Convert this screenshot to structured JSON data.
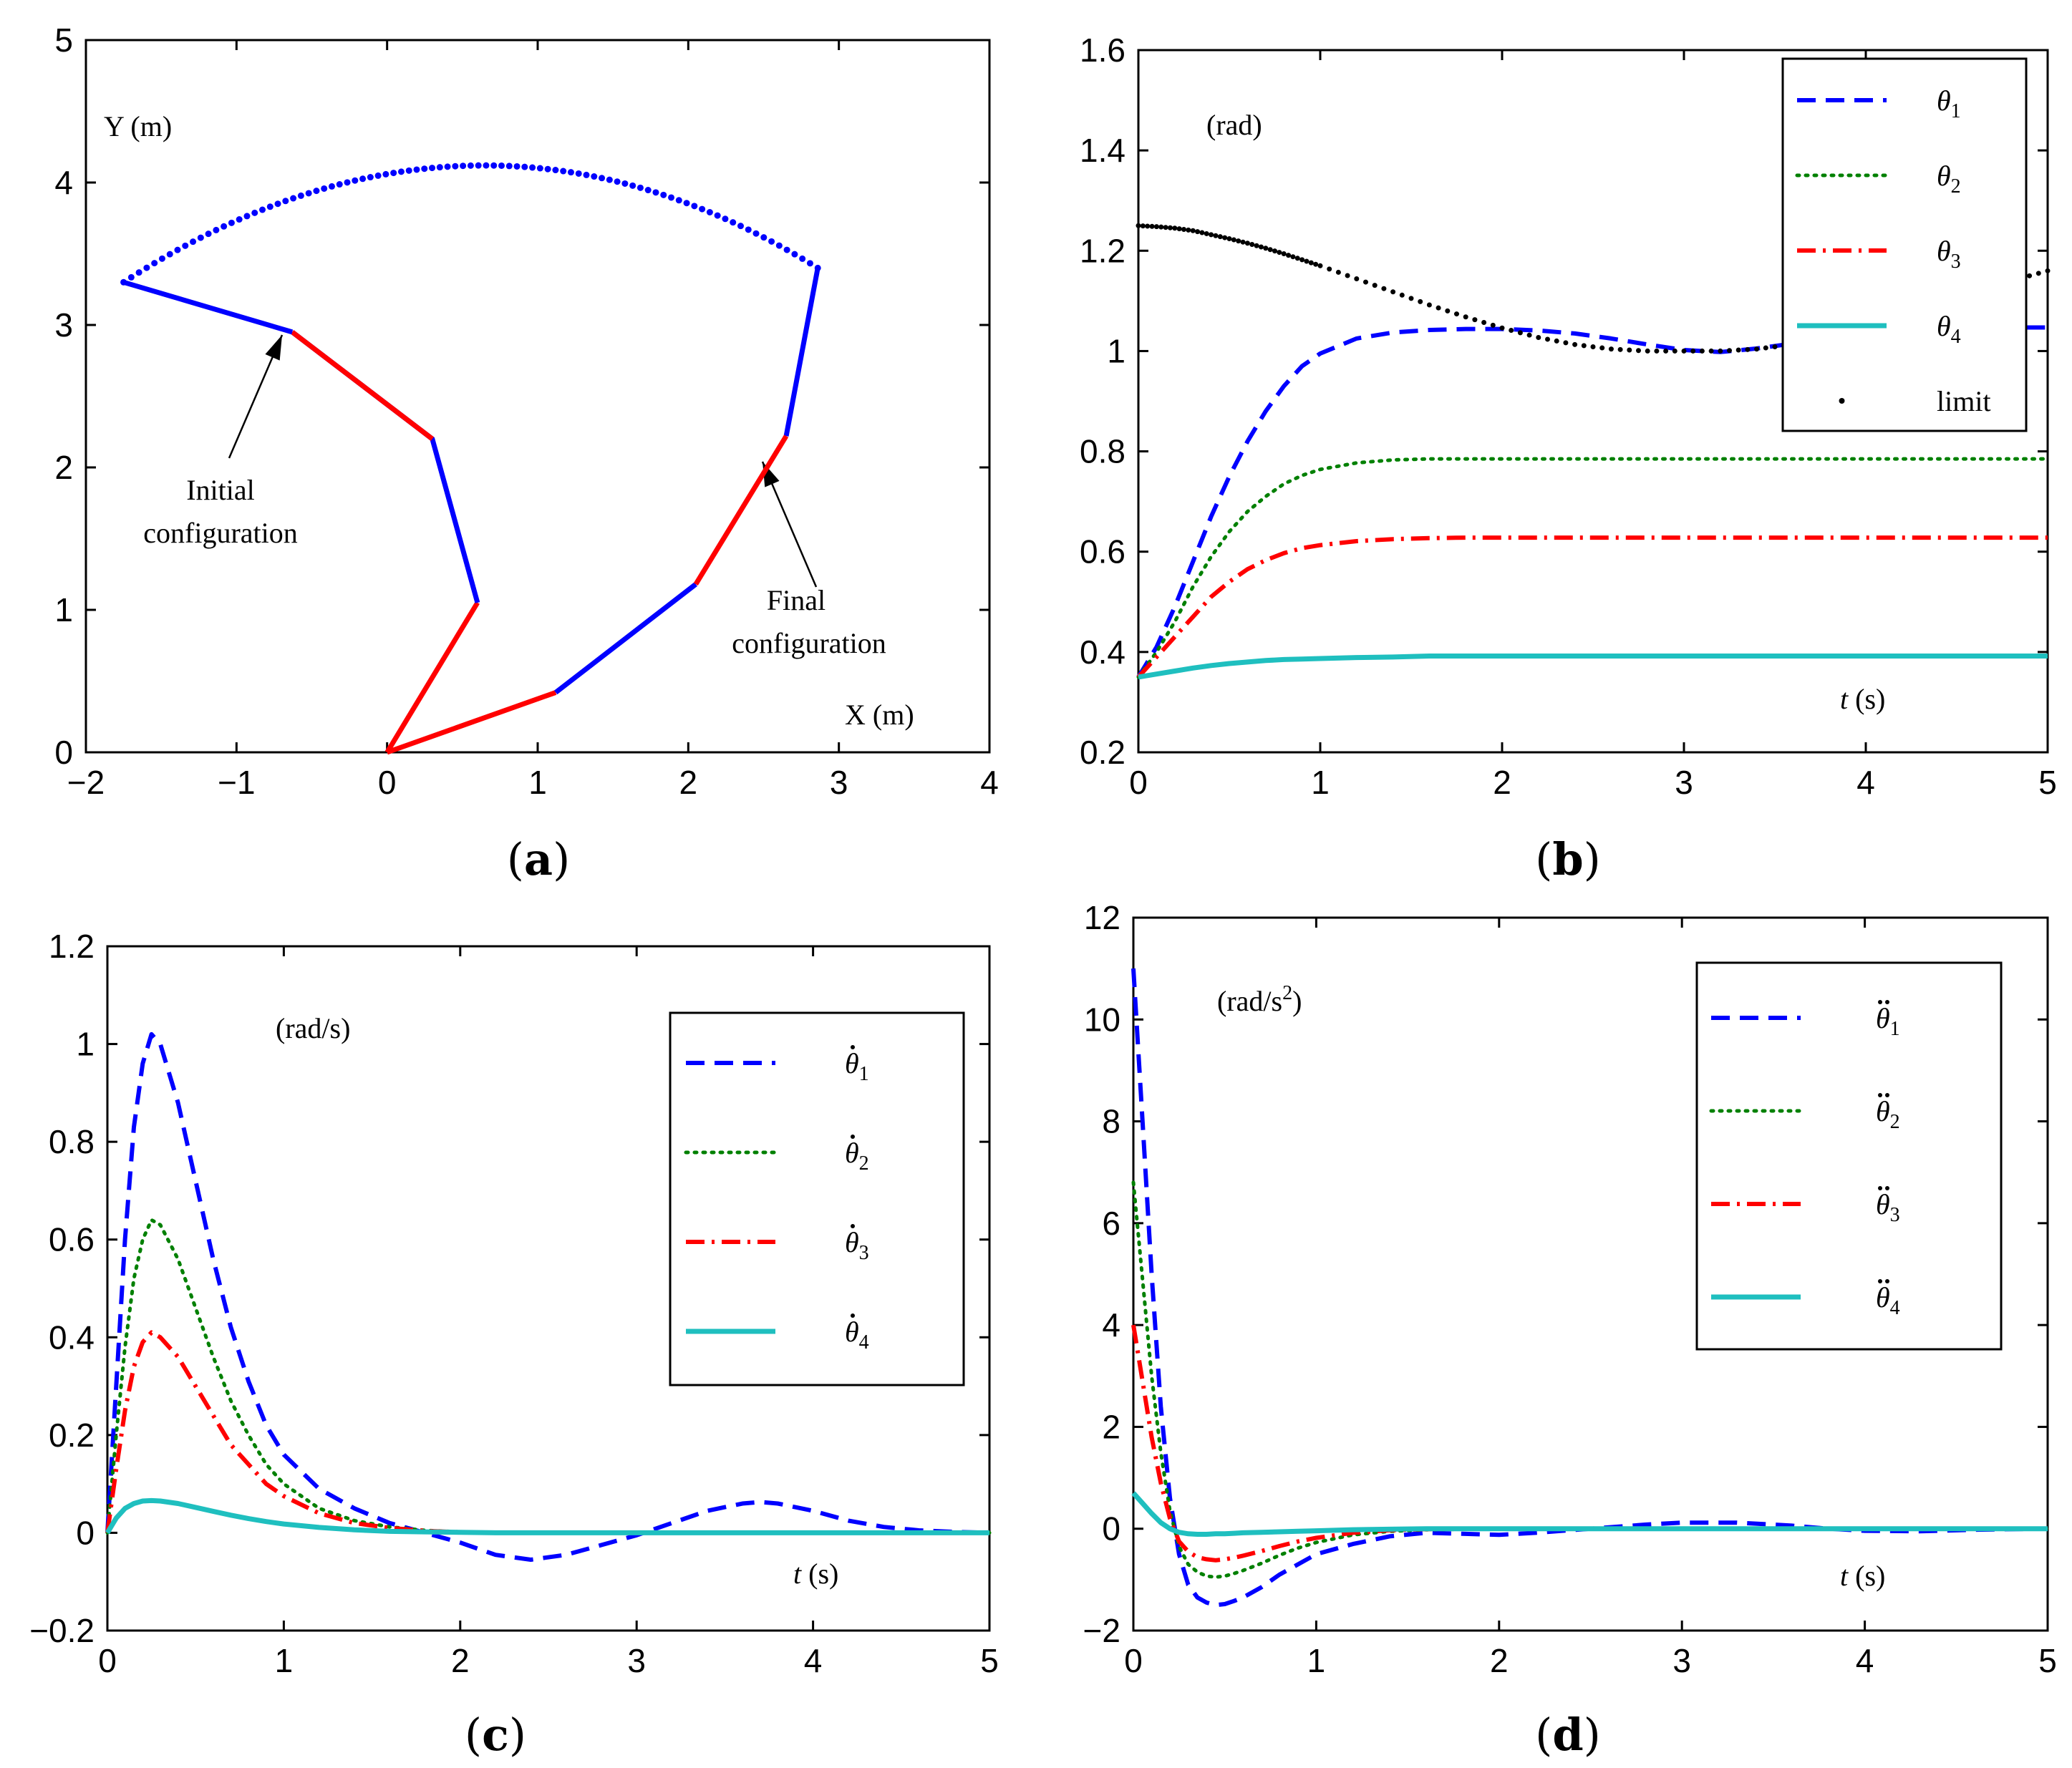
{
  "chart_data": [
    {
      "id": "a",
      "type": "line",
      "caption_letter": "a",
      "xlabel": "X (m)",
      "ylabel": "Y (m)",
      "xlim": [
        -2,
        4
      ],
      "ylim": [
        0,
        5
      ],
      "xticks": [
        -2,
        -1,
        0,
        1,
        2,
        3,
        4
      ],
      "xtick_labels": [
        "−2",
        "−1",
        "0",
        "1",
        "2",
        "3",
        "4"
      ],
      "yticks": [
        0,
        1,
        2,
        3,
        4,
        5
      ],
      "ytick_labels": [
        "0",
        "1",
        "2",
        "3",
        "4",
        "5"
      ],
      "annotations": [
        {
          "lines": [
            "Initial",
            "configuration"
          ],
          "anchor_data": [
            -0.55,
            2.9
          ],
          "text_data": [
            -0.9,
            1.8
          ]
        },
        {
          "lines": [
            "Final",
            "configuration"
          ],
          "anchor_data": [
            2.6,
            2.15
          ],
          "text_data": [
            2.8,
            1.0
          ]
        }
      ],
      "initial_configuration": [
        [
          0,
          0
        ],
        [
          0.6,
          1.05
        ],
        [
          0.3,
          2.2
        ],
        [
          -0.63,
          2.95
        ],
        [
          -1.75,
          3.3
        ]
      ],
      "final_configuration": [
        [
          0,
          0
        ],
        [
          1.12,
          0.42
        ],
        [
          2.05,
          1.18
        ],
        [
          2.65,
          2.22
        ],
        [
          2.86,
          3.4
        ]
      ],
      "colors": {
        "red": "#ff0000",
        "blue": "#0000ff"
      }
    },
    {
      "id": "b",
      "type": "line",
      "caption_letter": "b",
      "unit_label": "(rad)",
      "xlabel_italic": "t",
      "xlabel_rest": " (s)",
      "xlim": [
        0,
        5
      ],
      "ylim": [
        0.2,
        1.6
      ],
      "xticks": [
        0,
        1,
        2,
        3,
        4,
        5
      ],
      "xtick_labels": [
        "0",
        "1",
        "2",
        "3",
        "4",
        "5"
      ],
      "yticks": [
        0.2,
        0.4,
        0.6,
        0.8,
        1.0,
        1.2,
        1.4,
        1.6
      ],
      "ytick_labels": [
        "0.2",
        "0.4",
        "0.6",
        "0.8",
        "1",
        "1.2",
        "1.4",
        "1.6"
      ],
      "x": [
        0,
        0.1,
        0.2,
        0.3,
        0.4,
        0.5,
        0.6,
        0.7,
        0.8,
        0.9,
        1.0,
        1.2,
        1.4,
        1.6,
        1.8,
        2.0,
        2.2,
        2.4,
        2.6,
        2.8,
        3.0,
        3.2,
        3.4,
        3.6,
        3.8,
        4.0,
        4.2,
        4.4,
        4.6,
        4.8,
        5.0
      ],
      "series": [
        {
          "name": "θ",
          "subscript": "1",
          "color": "#0000ff",
          "style": "dashed",
          "values": [
            0.35,
            0.41,
            0.49,
            0.58,
            0.67,
            0.75,
            0.82,
            0.88,
            0.93,
            0.97,
            0.995,
            1.025,
            1.037,
            1.042,
            1.044,
            1.044,
            1.041,
            1.035,
            1.025,
            1.013,
            1.002,
            0.998,
            1.005,
            1.015,
            1.027,
            1.037,
            1.044,
            1.047,
            1.047,
            1.047,
            1.047
          ]
        },
        {
          "name": "θ",
          "subscript": "2",
          "color": "#008000",
          "style": "dotted",
          "values": [
            0.35,
            0.4,
            0.46,
            0.53,
            0.59,
            0.64,
            0.68,
            0.71,
            0.735,
            0.752,
            0.764,
            0.777,
            0.783,
            0.785,
            0.785,
            0.785,
            0.785,
            0.785,
            0.785,
            0.785,
            0.785,
            0.785,
            0.785,
            0.785,
            0.785,
            0.785,
            0.785,
            0.785,
            0.785,
            0.785,
            0.785
          ]
        },
        {
          "name": "θ",
          "subscript": "3",
          "color": "#ff0000",
          "style": "dashdot",
          "values": [
            0.35,
            0.39,
            0.43,
            0.47,
            0.51,
            0.54,
            0.565,
            0.583,
            0.597,
            0.607,
            0.613,
            0.621,
            0.625,
            0.627,
            0.628,
            0.628,
            0.628,
            0.628,
            0.628,
            0.628,
            0.628,
            0.628,
            0.628,
            0.628,
            0.628,
            0.628,
            0.628,
            0.628,
            0.628,
            0.628,
            0.628
          ]
        },
        {
          "name": "θ",
          "subscript": "4",
          "color": "#1fbfbf",
          "style": "solid",
          "values": [
            0.35,
            0.356,
            0.362,
            0.368,
            0.373,
            0.377,
            0.38,
            0.383,
            0.385,
            0.386,
            0.387,
            0.389,
            0.39,
            0.392,
            0.392,
            0.392,
            0.392,
            0.392,
            0.392,
            0.392,
            0.392,
            0.392,
            0.392,
            0.392,
            0.392,
            0.392,
            0.392,
            0.392,
            0.392,
            0.392,
            0.392
          ]
        },
        {
          "name": "limit",
          "color": "#000000",
          "style": "dots",
          "values": [
            1.25,
            1.248,
            1.245,
            1.24,
            1.232,
            1.224,
            1.215,
            1.205,
            1.194,
            1.182,
            1.17,
            1.144,
            1.118,
            1.092,
            1.068,
            1.046,
            1.027,
            1.013,
            1.004,
            1.0,
            1.0,
            1.0,
            1.004,
            1.013,
            1.027,
            1.046,
            1.068,
            1.092,
            1.118,
            1.14,
            1.16
          ]
        }
      ],
      "legend_position": "top-right"
    },
    {
      "id": "c",
      "type": "line",
      "caption_letter": "c",
      "unit_label": "(rad/s)",
      "xlabel_italic": "t",
      "xlabel_rest": " (s)",
      "xlim": [
        0,
        5
      ],
      "ylim": [
        -0.2,
        1.2
      ],
      "xticks": [
        0,
        1,
        2,
        3,
        4,
        5
      ],
      "xtick_labels": [
        "0",
        "1",
        "2",
        "3",
        "4",
        "5"
      ],
      "yticks": [
        -0.2,
        0,
        0.2,
        0.4,
        0.6,
        0.8,
        1.0,
        1.2
      ],
      "ytick_labels": [
        "−0.2",
        "0",
        "0.2",
        "0.4",
        "0.6",
        "0.8",
        "1",
        "1.2"
      ],
      "x": [
        0,
        0.05,
        0.1,
        0.15,
        0.2,
        0.25,
        0.3,
        0.4,
        0.5,
        0.6,
        0.7,
        0.8,
        0.9,
        1.0,
        1.2,
        1.4,
        1.6,
        1.8,
        2.0,
        2.2,
        2.4,
        2.6,
        2.8,
        3.0,
        3.2,
        3.4,
        3.6,
        3.7,
        3.8,
        4.0,
        4.2,
        4.4,
        4.6,
        4.8,
        5.0
      ],
      "series": [
        {
          "name": "θ",
          "subscript": "1",
          "dot": "single",
          "color": "#0000ff",
          "style": "dashed",
          "values": [
            0.0,
            0.3,
            0.6,
            0.83,
            0.96,
            1.02,
            1.0,
            0.88,
            0.72,
            0.56,
            0.42,
            0.31,
            0.22,
            0.16,
            0.09,
            0.05,
            0.02,
            0.0,
            -0.02,
            -0.045,
            -0.055,
            -0.045,
            -0.025,
            -0.005,
            0.02,
            0.045,
            0.06,
            0.063,
            0.06,
            0.045,
            0.025,
            0.012,
            0.005,
            0.002,
            0.0
          ]
        },
        {
          "name": "θ",
          "subscript": "2",
          "dot": "single",
          "color": "#008000",
          "style": "dotted",
          "values": [
            0.0,
            0.2,
            0.38,
            0.52,
            0.6,
            0.64,
            0.63,
            0.56,
            0.46,
            0.36,
            0.27,
            0.2,
            0.14,
            0.1,
            0.05,
            0.025,
            0.012,
            0.005,
            0.002,
            0.001,
            0,
            0,
            0,
            0,
            0,
            0,
            0,
            0,
            0,
            0,
            0,
            0,
            0,
            0,
            0
          ]
        },
        {
          "name": "θ",
          "subscript": "3",
          "dot": "single",
          "color": "#ff0000",
          "style": "dashdot",
          "values": [
            0.0,
            0.13,
            0.25,
            0.34,
            0.39,
            0.41,
            0.4,
            0.36,
            0.3,
            0.24,
            0.18,
            0.14,
            0.1,
            0.075,
            0.04,
            0.02,
            0.01,
            0.004,
            0.001,
            0,
            0,
            0,
            0,
            0,
            0,
            0,
            0,
            0,
            0,
            0,
            0,
            0,
            0,
            0,
            0
          ]
        },
        {
          "name": "θ",
          "subscript": "4",
          "dot": "single",
          "color": "#1fbfbf",
          "style": "solid",
          "values": [
            0.0,
            0.03,
            0.05,
            0.06,
            0.065,
            0.066,
            0.065,
            0.06,
            0.052,
            0.044,
            0.036,
            0.029,
            0.023,
            0.018,
            0.011,
            0.006,
            0.003,
            0.002,
            0.001,
            0,
            0,
            0,
            0,
            0,
            0,
            0,
            0,
            0,
            0,
            0,
            0,
            0,
            0,
            0,
            0
          ]
        }
      ],
      "legend_position": "top-right"
    },
    {
      "id": "d",
      "type": "line",
      "caption_letter": "d",
      "unit_label": "(rad/s",
      "unit_sup": "2",
      "unit_close": ")",
      "xlabel_italic": "t",
      "xlabel_rest": " (s)",
      "xlim": [
        0,
        5
      ],
      "ylim": [
        -2,
        12
      ],
      "xticks": [
        0,
        1,
        2,
        3,
        4,
        5
      ],
      "xtick_labels": [
        "0",
        "1",
        "2",
        "3",
        "4",
        "5"
      ],
      "yticks": [
        -2,
        0,
        2,
        4,
        6,
        8,
        10,
        12
      ],
      "ytick_labels": [
        "−2",
        "0",
        "2",
        "4",
        "6",
        "8",
        "10",
        "12"
      ],
      "x": [
        0,
        0.05,
        0.1,
        0.15,
        0.2,
        0.25,
        0.3,
        0.35,
        0.4,
        0.45,
        0.5,
        0.55,
        0.6,
        0.7,
        0.8,
        0.9,
        1.0,
        1.2,
        1.4,
        1.6,
        1.8,
        2.0,
        2.2,
        2.5,
        2.8,
        3.0,
        3.3,
        3.6,
        3.8,
        4.0,
        4.3,
        4.6,
        5.0
      ],
      "series": [
        {
          "name": "θ",
          "subscript": "1",
          "dot": "double",
          "color": "#0000ff",
          "style": "dashed",
          "values": [
            11.0,
            8.0,
            5.0,
            2.4,
            0.6,
            -0.5,
            -1.1,
            -1.35,
            -1.45,
            -1.5,
            -1.48,
            -1.42,
            -1.35,
            -1.15,
            -0.9,
            -0.7,
            -0.5,
            -0.3,
            -0.15,
            -0.08,
            -0.1,
            -0.12,
            -0.08,
            0.0,
            0.08,
            0.12,
            0.12,
            0.06,
            0.0,
            -0.04,
            -0.05,
            -0.02,
            0.0
          ]
        },
        {
          "name": "θ",
          "subscript": "2",
          "dot": "double",
          "color": "#008000",
          "style": "dotted",
          "values": [
            6.8,
            4.9,
            3.0,
            1.5,
            0.35,
            -0.35,
            -0.7,
            -0.85,
            -0.93,
            -0.95,
            -0.93,
            -0.88,
            -0.82,
            -0.68,
            -0.52,
            -0.38,
            -0.27,
            -0.12,
            -0.05,
            -0.02,
            -0.01,
            0,
            0,
            0,
            0,
            0,
            0,
            0,
            0,
            0,
            0,
            0,
            0
          ]
        },
        {
          "name": "θ",
          "subscript": "3",
          "dot": "double",
          "color": "#ff0000",
          "style": "dashdot",
          "values": [
            4.0,
            2.9,
            1.8,
            0.9,
            0.2,
            -0.25,
            -0.45,
            -0.56,
            -0.6,
            -0.62,
            -0.6,
            -0.57,
            -0.53,
            -0.44,
            -0.34,
            -0.25,
            -0.18,
            -0.08,
            -0.03,
            -0.01,
            0,
            0,
            0,
            0,
            0,
            0,
            0,
            0,
            0,
            0,
            0,
            0,
            0
          ]
        },
        {
          "name": "θ",
          "subscript": "4",
          "dot": "double",
          "color": "#1fbfbf",
          "style": "solid",
          "values": [
            0.7,
            0.5,
            0.3,
            0.12,
            0.0,
            -0.07,
            -0.1,
            -0.11,
            -0.11,
            -0.1,
            -0.1,
            -0.09,
            -0.08,
            -0.07,
            -0.06,
            -0.05,
            -0.04,
            -0.02,
            -0.01,
            0,
            0,
            0,
            0,
            0,
            0,
            0,
            0,
            0,
            0,
            0,
            0,
            0,
            0
          ]
        }
      ],
      "legend_position": "top-right"
    }
  ]
}
